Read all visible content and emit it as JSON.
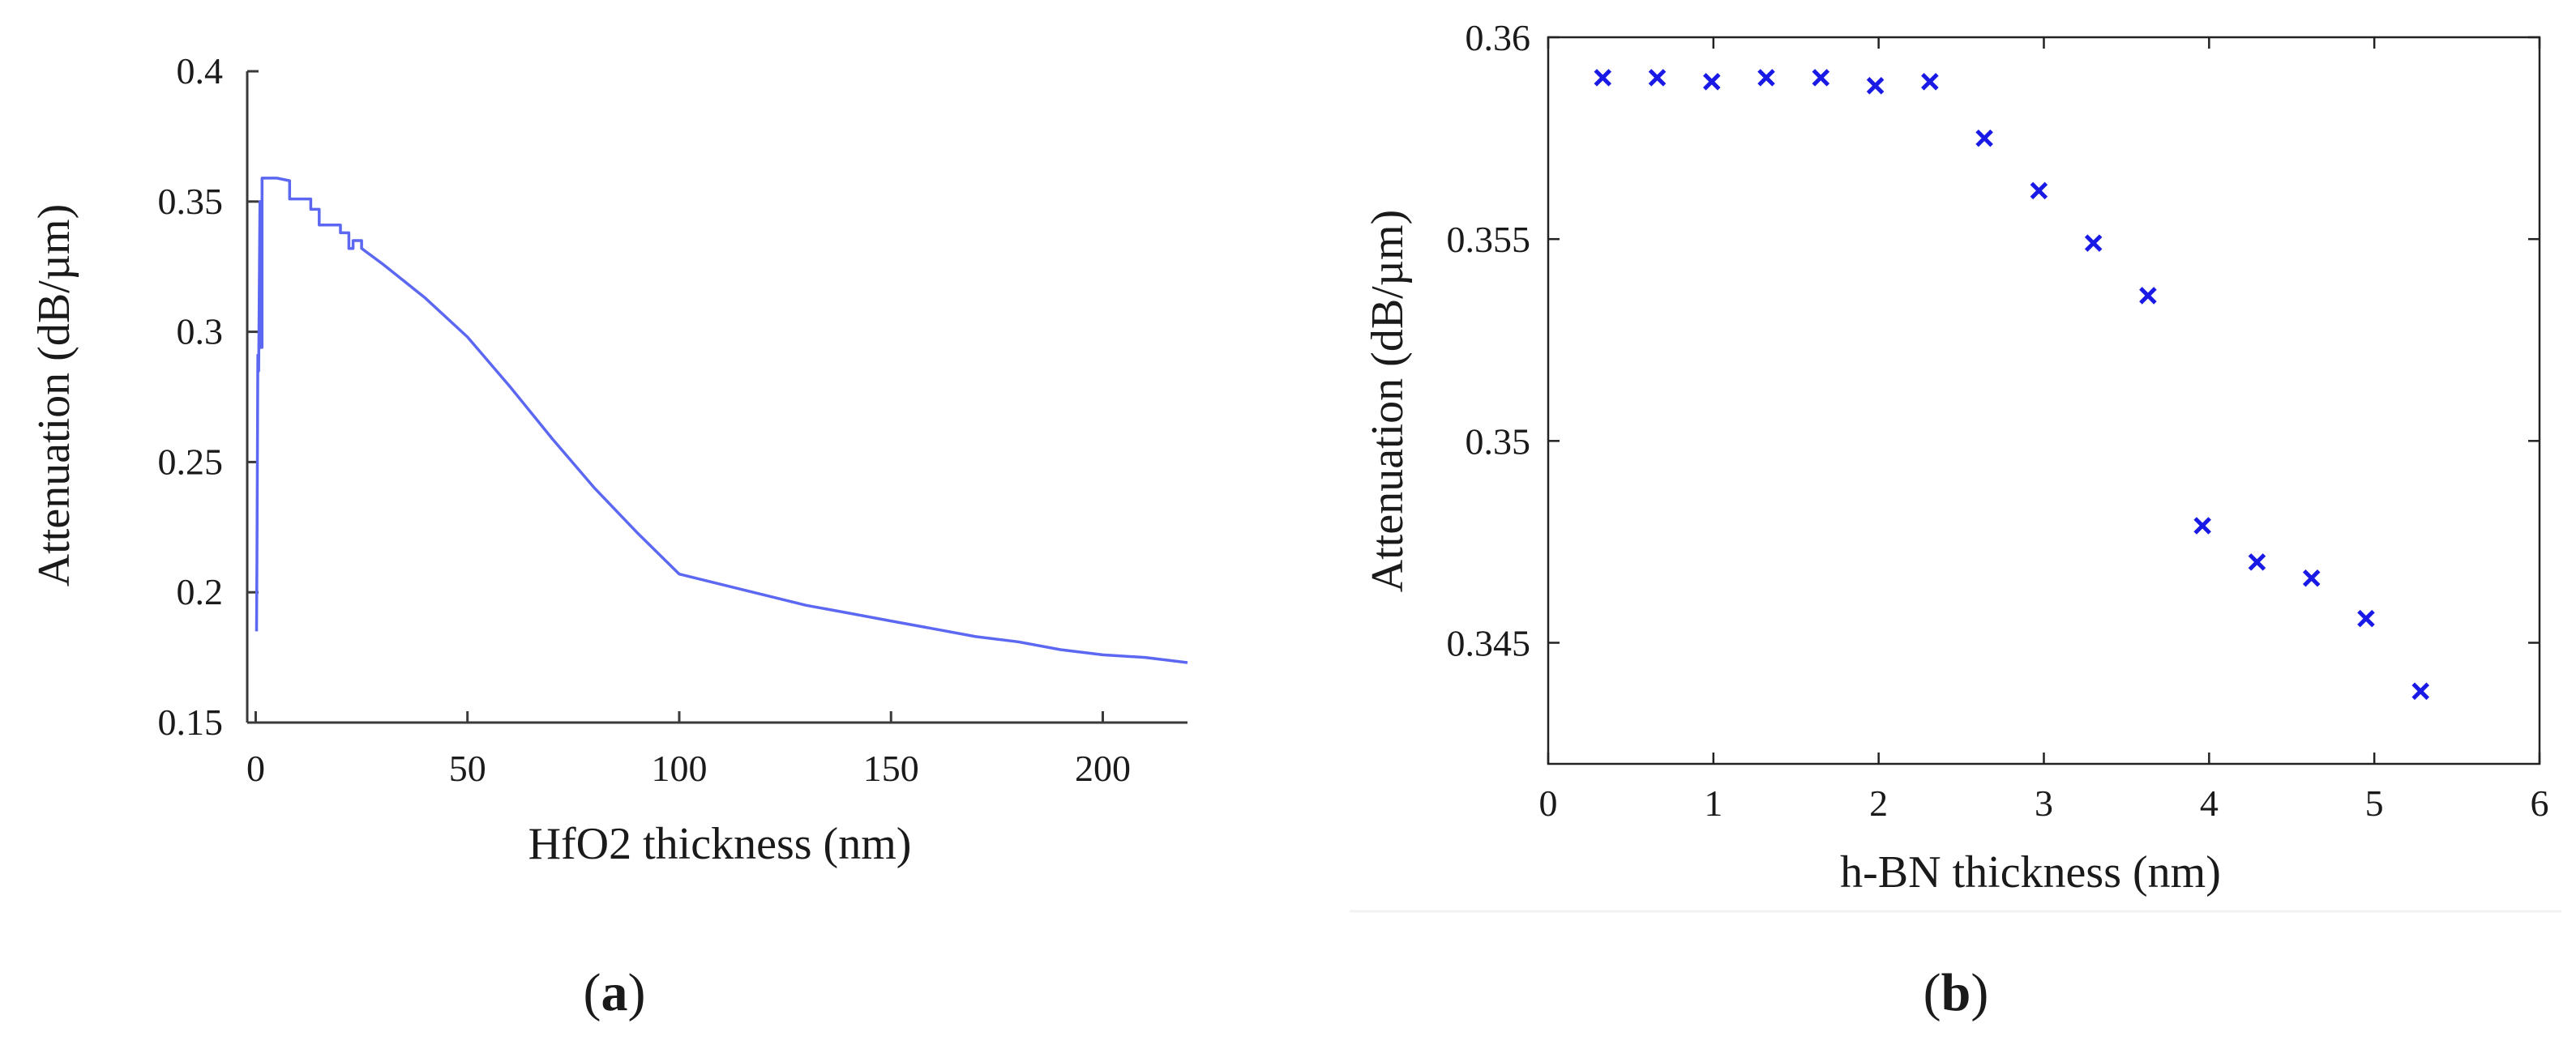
{
  "chart_data": [
    {
      "type": "line",
      "panel": "a",
      "title": "",
      "xlabel": "HfO2 thickness (nm)",
      "ylabel": "Attenuation (dB/µm)",
      "xlim": [
        -2,
        220
      ],
      "ylim": [
        0.15,
        0.4
      ],
      "xticks": [
        0,
        50,
        100,
        150,
        200
      ],
      "xtick_labels": [
        "0",
        "50",
        "100",
        "150",
        "200"
      ],
      "yticks": [
        0.15,
        0.2,
        0.25,
        0.3,
        0.35,
        0.4
      ],
      "ytick_labels": [
        "0.15",
        "0.2",
        "0.25",
        "0.3",
        "0.35",
        "0.4"
      ],
      "grid": false,
      "color": "#5c67f2",
      "series": [
        {
          "name": "attenuation",
          "x": [
            0.2,
            0.3,
            0.5,
            0.7,
            1.0,
            1.0,
            1.5,
            1.5,
            5.0,
            8.0,
            8.0,
            13.0,
            13.0,
            15.0,
            15.0,
            20.0,
            20.0,
            22.0,
            22.0,
            23.0,
            23.0,
            25.0,
            25.0,
            30.0,
            40.0,
            50.0,
            60.0,
            70.0,
            80.0,
            90.0,
            100.0,
            110.0,
            120.0,
            130.0,
            140.0,
            150.0,
            160.0,
            170.0,
            180.0,
            190.0,
            200.0,
            210.0,
            220.0
          ],
          "y": [
            0.185,
            0.213,
            0.291,
            0.285,
            0.35,
            0.294,
            0.294,
            0.359,
            0.359,
            0.358,
            0.351,
            0.351,
            0.347,
            0.347,
            0.341,
            0.341,
            0.338,
            0.338,
            0.332,
            0.332,
            0.335,
            0.335,
            0.332,
            0.326,
            0.313,
            0.298,
            0.279,
            0.259,
            0.24,
            0.223,
            0.207,
            0.203,
            0.199,
            0.195,
            0.192,
            0.189,
            0.186,
            0.183,
            0.181,
            0.178,
            0.176,
            0.175,
            0.173
          ]
        }
      ],
      "caption": "a"
    },
    {
      "type": "scatter",
      "panel": "b",
      "title": "",
      "xlabel": "h-BN thickness (nm)",
      "ylabel": "Attenuation (dB/µm)",
      "xlim": [
        0,
        6
      ],
      "ylim": [
        0.342,
        0.36
      ],
      "xticks": [
        0,
        1,
        2,
        3,
        4,
        5,
        6
      ],
      "xtick_labels": [
        "0",
        "1",
        "2",
        "3",
        "4",
        "5",
        "6"
      ],
      "yticks": [
        0.345,
        0.35,
        0.355,
        0.36
      ],
      "ytick_labels": [
        "0.345",
        "0.35",
        "0.355",
        "0.36"
      ],
      "grid": false,
      "marker": "x",
      "color": "#1a1ae6",
      "series": [
        {
          "name": "attenuation",
          "x": [
            0.33,
            0.66,
            0.99,
            1.32,
            1.65,
            1.98,
            2.31,
            2.64,
            2.97,
            3.3,
            3.63,
            3.96,
            4.29,
            4.62,
            4.95,
            5.28
          ],
          "y": [
            0.359,
            0.359,
            0.3589,
            0.359,
            0.359,
            0.3588,
            0.3589,
            0.3575,
            0.3562,
            0.3549,
            0.3536,
            0.3479,
            0.347,
            0.3466,
            0.3456,
            0.3438
          ]
        }
      ],
      "caption": "b"
    }
  ]
}
